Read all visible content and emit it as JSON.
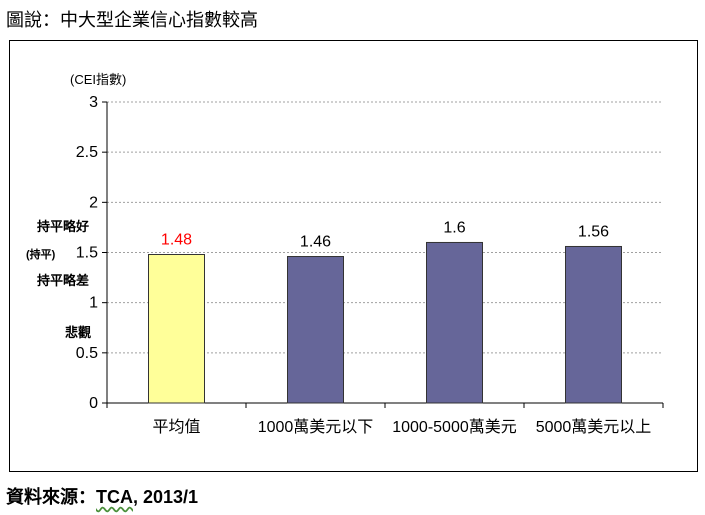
{
  "figure": {
    "title": "圖說：中大型企業信心指數較高",
    "source_prefix": "資料來源：",
    "source_org": "TCA",
    "source_suffix": ", 2013/1"
  },
  "chart_data": {
    "type": "bar",
    "ylabel": "(CEI指數)",
    "categories": [
      "平均值",
      "1000萬美元以下",
      "1000-5000萬美元",
      "5000萬美元以上"
    ],
    "values": [
      1.48,
      1.46,
      1.6,
      1.56
    ],
    "data_labels": [
      "1.48",
      "1.46",
      "1.6",
      "1.56"
    ],
    "bar_colors": [
      "#ffff99",
      "#666699",
      "#666699",
      "#666699"
    ],
    "label_colors": [
      "#ff0000",
      "#000000",
      "#000000",
      "#000000"
    ],
    "ylim": [
      0,
      3
    ],
    "yticks": [
      0,
      0.5,
      1,
      1.5,
      2,
      2.5,
      3
    ],
    "ytick_labels": [
      "0",
      "0.5",
      "1",
      "1.5",
      "2",
      "2.5",
      "3"
    ],
    "grid": true,
    "annotations": [
      {
        "text": "持平略好",
        "color": "#ff6600"
      },
      {
        "text": "(持平)",
        "color": "#000000"
      },
      {
        "text": "持平略差",
        "color": "#339933"
      },
      {
        "text": "悲觀",
        "color": "#1a8f8f"
      }
    ]
  }
}
